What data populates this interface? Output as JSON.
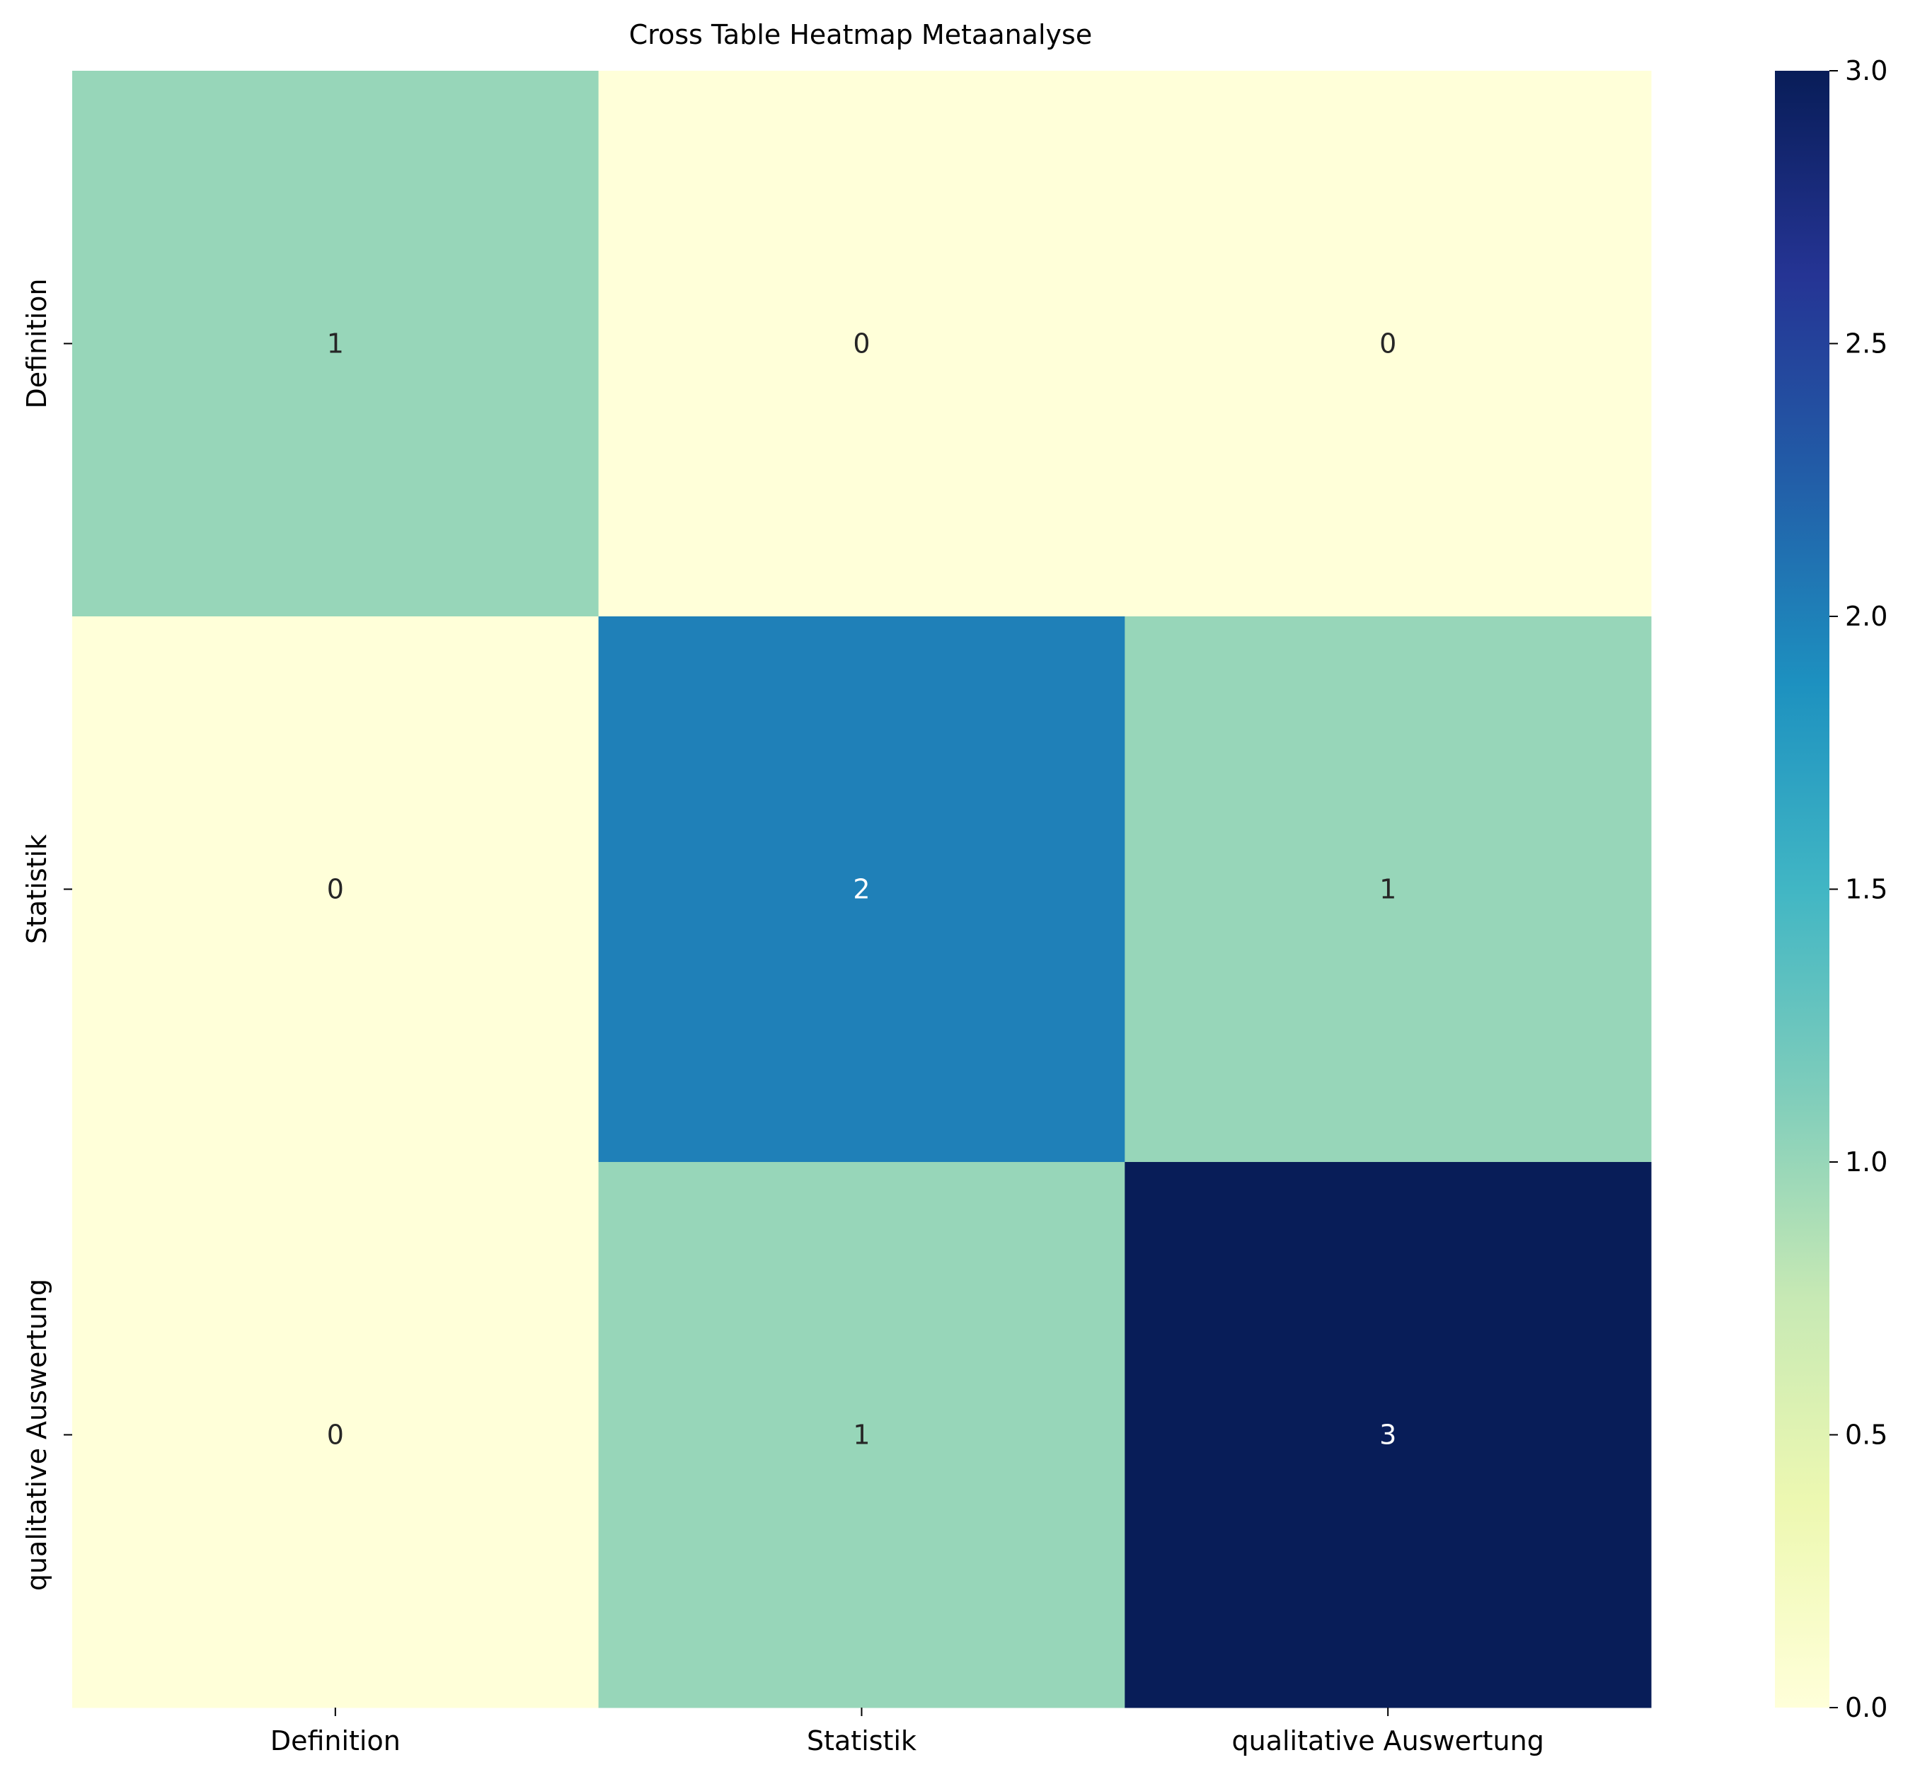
{
  "chart_data": {
    "type": "heatmap",
    "title": "Cross Table Heatmap Metaanalyse",
    "xlabel": "",
    "ylabel": "",
    "x_categories": [
      "Definition",
      "Statistik",
      "qualitative Auswertung"
    ],
    "y_categories": [
      "Definition",
      "Statistik",
      "qualitative Auswertung"
    ],
    "values": [
      [
        1,
        0,
        0
      ],
      [
        0,
        2,
        1
      ],
      [
        0,
        1,
        3
      ]
    ],
    "colormap": "YlGnBu",
    "color_range": [
      0,
      3
    ],
    "colorbar": {
      "ticks": [
        0.0,
        0.5,
        1.0,
        1.5,
        2.0,
        2.5,
        3.0
      ],
      "tick_labels": [
        "0.0",
        "0.5",
        "1.0",
        "1.5",
        "2.0",
        "2.5",
        "3.0"
      ]
    },
    "annotate_cells": true,
    "grid": false
  }
}
